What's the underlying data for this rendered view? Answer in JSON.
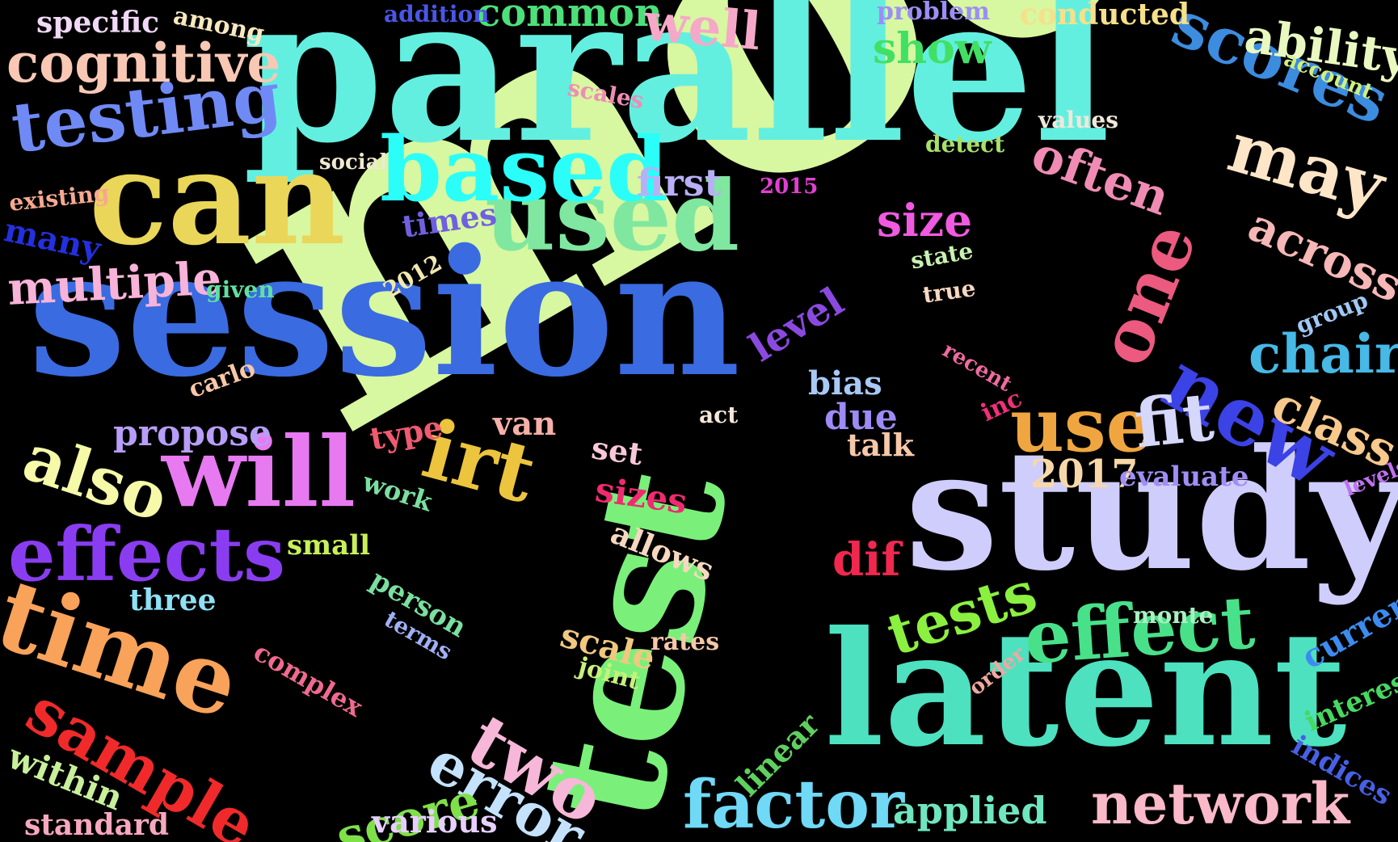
{
  "background": "#000000",
  "words": [
    {
      "text": "model",
      "color": "#d7f7a0"
    },
    {
      "text": "parallel",
      "color": "#63efe0"
    },
    {
      "text": "session",
      "color": "#3a6be0"
    },
    {
      "text": "test",
      "color": "#7af07a"
    },
    {
      "text": "latent",
      "color": "#4de1c0"
    },
    {
      "text": "study",
      "color": "#cfcdfc"
    },
    {
      "text": "can",
      "color": "#ead659"
    },
    {
      "text": "used",
      "color": "#7fe7a0"
    },
    {
      "text": "based",
      "color": "#2bfef8"
    },
    {
      "text": "will",
      "color": "#e77af0"
    },
    {
      "text": "time",
      "color": "#f8a25a"
    },
    {
      "text": "irt",
      "color": "#ecc43e"
    },
    {
      "text": "sample",
      "color": "#f02a2a"
    },
    {
      "text": "effects",
      "color": "#8a3df0"
    },
    {
      "text": "also",
      "color": "#f5f9a8"
    },
    {
      "text": "testing",
      "color": "#6f8af5"
    },
    {
      "text": "cognitive",
      "color": "#f8c8b5"
    },
    {
      "text": "scores",
      "color": "#3c8ce0"
    },
    {
      "text": "may",
      "color": "#fde6c8"
    },
    {
      "text": "one",
      "color": "#ec5a80"
    },
    {
      "text": "new",
      "color": "#3b42e6"
    },
    {
      "text": "use",
      "color": "#f0a640"
    },
    {
      "text": "fit",
      "color": "#d5d7fb"
    },
    {
      "text": "effect",
      "color": "#48e18a"
    },
    {
      "text": "factor",
      "color": "#6fd9f6"
    },
    {
      "text": "network",
      "color": "#f9b9c9"
    },
    {
      "text": "two",
      "color": "#f7b7d8"
    },
    {
      "text": "error",
      "color": "#c4e2fb"
    },
    {
      "text": "tests",
      "color": "#8bf040"
    },
    {
      "text": "score",
      "color": "#7fe049"
    },
    {
      "text": "multiple",
      "color": "#f7b3d8"
    },
    {
      "text": "chair",
      "color": "#46b9e6"
    },
    {
      "text": "across",
      "color": "#f6b7b7"
    },
    {
      "text": "class",
      "color": "#f7c98c"
    },
    {
      "text": "ability",
      "color": "#e8f8c0"
    },
    {
      "text": "often",
      "color": "#f08cb4"
    },
    {
      "text": "size",
      "color": "#f05ae0"
    },
    {
      "text": "show",
      "color": "#41e065"
    },
    {
      "text": "common",
      "color": "#4de07a"
    },
    {
      "text": "well",
      "color": "#f6a8c8"
    },
    {
      "text": "level",
      "color": "#8a4ae0"
    },
    {
      "text": "dif",
      "color": "#f0284f"
    },
    {
      "text": "propose",
      "color": "#b79ef8"
    },
    {
      "text": "2017",
      "color": "#f8d8a8"
    },
    {
      "text": "current",
      "color": "#3c8cf0"
    },
    {
      "text": "interest",
      "color": "#47d860"
    },
    {
      "text": "applied",
      "color": "#6fe6c0"
    },
    {
      "text": "first",
      "color": "#b7b0f6"
    },
    {
      "text": "many",
      "color": "#2430e0"
    },
    {
      "text": "times",
      "color": "#7060e0"
    },
    {
      "text": "linear",
      "color": "#5fd060"
    },
    {
      "text": "scale",
      "color": "#f0c880"
    },
    {
      "text": "within",
      "color": "#c8f09a"
    },
    {
      "text": "standard",
      "color": "#f7a8c0"
    },
    {
      "text": "various",
      "color": "#e7cfff"
    },
    {
      "text": "indices",
      "color": "#4760e6"
    },
    {
      "text": "due",
      "color": "#9e8bf5"
    },
    {
      "text": "bias",
      "color": "#a8c8f6"
    },
    {
      "text": "sizes",
      "color": "#f02a70"
    },
    {
      "text": "allows",
      "color": "#f6d8c0"
    },
    {
      "text": "evaluate",
      "color": "#a08ef5"
    },
    {
      "text": "talk",
      "color": "#f7c8a8"
    },
    {
      "text": "set",
      "color": "#f8c8d8"
    },
    {
      "text": "van",
      "color": "#f6b0a8"
    },
    {
      "text": "type",
      "color": "#f05a70"
    },
    {
      "text": "person",
      "color": "#7ae0a0"
    },
    {
      "text": "terms",
      "color": "#a0b0f6"
    },
    {
      "text": "complex",
      "color": "#f06a90"
    },
    {
      "text": "joint",
      "color": "#c8f07a"
    },
    {
      "text": "rates",
      "color": "#f6c8a8"
    },
    {
      "text": "three",
      "color": "#8fe0f6"
    },
    {
      "text": "small",
      "color": "#c8f05a"
    },
    {
      "text": "work",
      "color": "#7ae0a0"
    },
    {
      "text": "carlo",
      "color": "#f8c8a8"
    },
    {
      "text": "given",
      "color": "#5fe0a0"
    },
    {
      "text": "2012",
      "color": "#f0e8b0"
    },
    {
      "text": "existing",
      "color": "#f6a890"
    },
    {
      "text": "social",
      "color": "#f0e8d0"
    },
    {
      "text": "specific",
      "color": "#f0d8f6"
    },
    {
      "text": "among",
      "color": "#f8e8c0"
    },
    {
      "text": "addition",
      "color": "#4a56e6"
    },
    {
      "text": "problem",
      "color": "#9c8ef5"
    },
    {
      "text": "conducted",
      "color": "#f6e08a"
    },
    {
      "text": "scales",
      "color": "#f08cb4"
    },
    {
      "text": "values",
      "color": "#f0e8d8"
    },
    {
      "text": "detect",
      "color": "#a8e06a"
    },
    {
      "text": "account",
      "color": "#d0f080"
    },
    {
      "text": "2015",
      "color": "#e040d0"
    },
    {
      "text": "state",
      "color": "#c8f0b0"
    },
    {
      "text": "true",
      "color": "#f6d8c0"
    },
    {
      "text": "group",
      "color": "#a0c8f6"
    },
    {
      "text": "recent",
      "color": "#f06aa0"
    },
    {
      "text": "inc",
      "color": "#f0307a"
    },
    {
      "text": "act",
      "color": "#f6e8d8"
    },
    {
      "text": "levels",
      "color": "#c070f0"
    },
    {
      "text": "monte",
      "color": "#a8f0c0"
    },
    {
      "text": "order",
      "color": "#f0a8a0"
    }
  ]
}
